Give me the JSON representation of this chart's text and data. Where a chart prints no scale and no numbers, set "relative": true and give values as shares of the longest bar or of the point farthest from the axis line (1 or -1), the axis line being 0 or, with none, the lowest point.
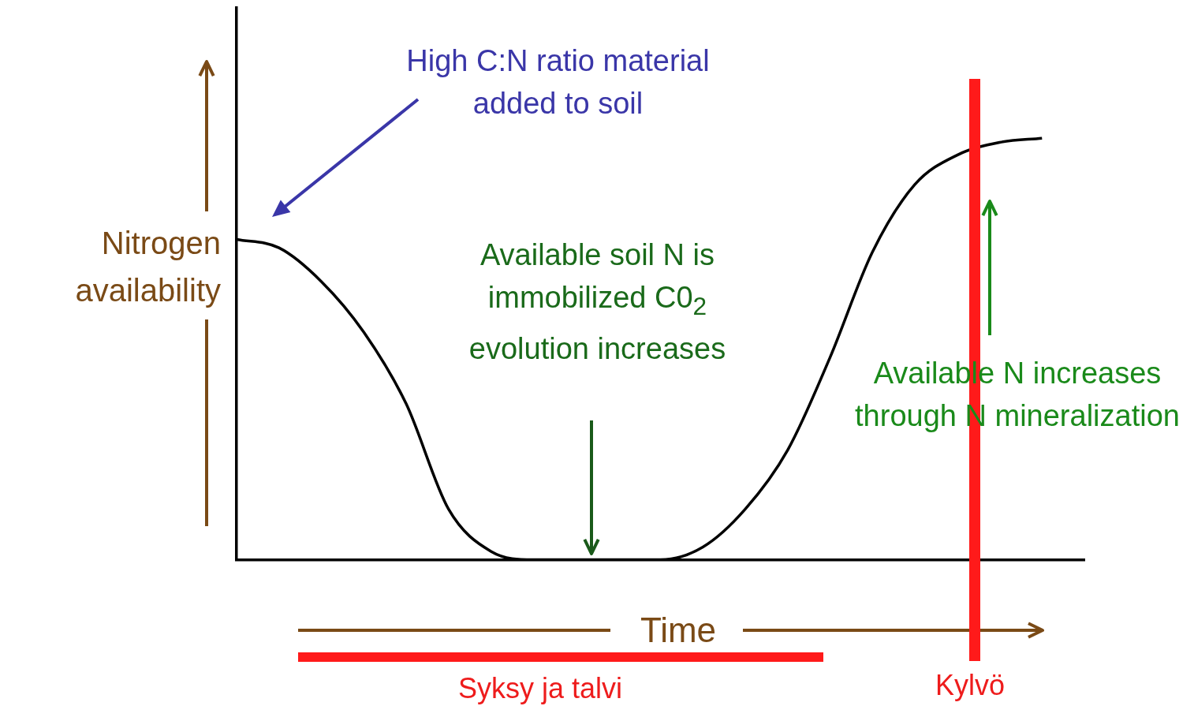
{
  "chart_data": {
    "type": "line",
    "relative": true,
    "xlabel": "Time",
    "ylabel": "Nitrogen availability",
    "categories": [
      null,
      null,
      null,
      null,
      null,
      null,
      null,
      null,
      null,
      null,
      null,
      null,
      null,
      null,
      null,
      null,
      null,
      null,
      null,
      null,
      null
    ],
    "series": [
      {
        "color": "#000000",
        "values": [
          0.76,
          0.74,
          0.66,
          0.54,
          0.37,
          0.12,
          0.02,
          0,
          0,
          0,
          0,
          0.03,
          0.12,
          0.26,
          0.48,
          0.73,
          0.89,
          0.96,
          0.99,
          1,
          null
        ]
      }
    ],
    "legend": false,
    "grid": false,
    "annotations": [
      "High C:N ratio material added to soil",
      "Available soil N is immobilized C0$_{2}$ evolution increases",
      "Available N increases through N mineralization",
      "Syksy ja talvi",
      "Kylvö"
    ]
  }
}
